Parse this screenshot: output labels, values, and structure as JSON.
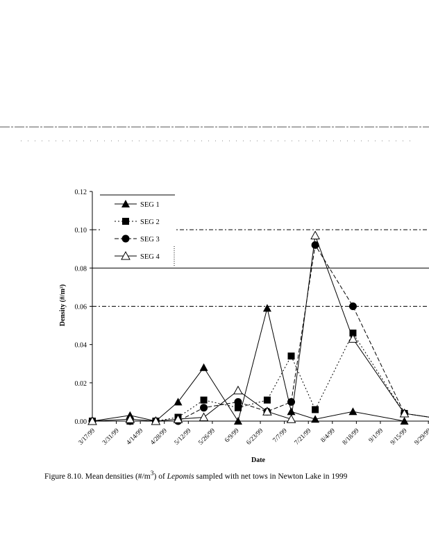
{
  "chart_data": {
    "type": "line",
    "title": "",
    "xlabel": "Date",
    "ylabel": "Density (#/m³)",
    "ylim": [
      0,
      0.12
    ],
    "yticks": [
      "0.00",
      "0.02",
      "0.04",
      "0.06",
      "0.08",
      "0.10",
      "0.12"
    ],
    "xtick_labels": [
      "3/17/99",
      "3/31/99",
      "4/14/99",
      "4/28/99",
      "5/12/99",
      "5/26/99",
      "6/9/99",
      "6/23/99",
      "7/7/99",
      "7/21/99",
      "8/4/99",
      "8/18/99",
      "9/1/99",
      "9/15/99",
      "9/29/99"
    ],
    "x_days_since_3_17": [
      0,
      22,
      37,
      50,
      65,
      85,
      102,
      116,
      130,
      152,
      182,
      197
    ],
    "series": [
      {
        "name": "SEG 1",
        "marker": "filled-triangle",
        "dash": "",
        "values": [
          0,
          0.003,
          0,
          0.01,
          0.028,
          0,
          0.059,
          0.005,
          0.001,
          0.005,
          0,
          0
        ]
      },
      {
        "name": "SEG 2",
        "marker": "filled-square",
        "dash": "2,3",
        "values": [
          0,
          0,
          0,
          0.002,
          0.011,
          0.007,
          0.011,
          0.034,
          0.006,
          0.046,
          0.004,
          0.002
        ]
      },
      {
        "name": "SEG 3",
        "marker": "filled-circle",
        "dash": "6,3",
        "values": [
          0,
          0,
          0,
          0,
          0.007,
          0.01,
          0.005,
          0.01,
          0.092,
          0.06,
          0.004,
          0.002
        ]
      },
      {
        "name": "SEG 4",
        "marker": "open-triangle",
        "dash": "",
        "values": [
          0,
          0.001,
          0,
          0.001,
          0.002,
          0.016,
          0.005,
          0.001,
          0.097,
          0.043,
          0.004,
          0.002
        ]
      }
    ],
    "legend_position": "top-left",
    "gridlines": [
      0.06,
      0.08,
      0.1
    ]
  },
  "caption": {
    "prefix": "Figure 8.10.  Mean densities (#/m",
    "sup": "3",
    "middle": ") of ",
    "taxon": "Lepomis",
    "suffix": " sampled with net tows in Newton Lake in 1999"
  }
}
